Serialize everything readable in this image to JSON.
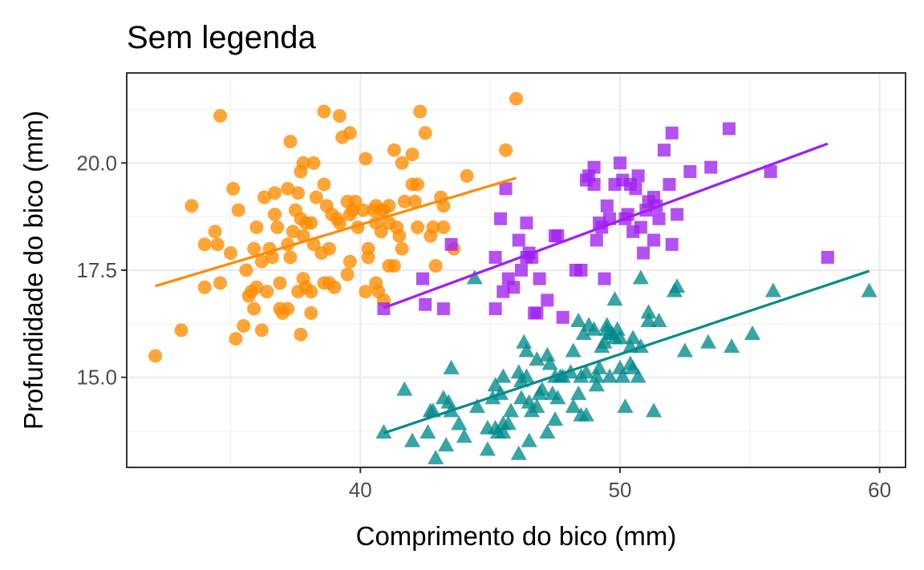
{
  "chart_data": {
    "type": "scatter",
    "title": "Sem legenda",
    "xlabel": "Comprimento do bico (mm)",
    "ylabel": "Profundidade do bico (mm)",
    "xlim": [
      31,
      61
    ],
    "ylim": [
      12.9,
      22.1
    ],
    "x_ticks": [
      40,
      50,
      60
    ],
    "y_ticks": [
      15.0,
      17.5,
      20.0
    ],
    "x_tick_labels": [
      "40",
      "50",
      "60"
    ],
    "y_tick_labels": [
      "15.0",
      "17.5",
      "20.0"
    ],
    "grid": true,
    "legend": "none",
    "series": [
      {
        "marker": "circle",
        "color": "#ff8c00",
        "fit_line": [
          [
            32.1,
            17.13
          ],
          [
            46.0,
            19.65
          ]
        ],
        "points": [
          [
            32.1,
            15.5
          ],
          [
            33.1,
            16.1
          ],
          [
            33.5,
            19.0
          ],
          [
            34.0,
            18.1
          ],
          [
            34.4,
            18.4
          ],
          [
            34.5,
            18.1
          ],
          [
            34.6,
            21.1
          ],
          [
            34.6,
            17.2
          ],
          [
            34.0,
            17.1
          ],
          [
            35.0,
            17.9
          ],
          [
            35.1,
            19.4
          ],
          [
            35.2,
            15.9
          ],
          [
            35.5,
            16.2
          ],
          [
            35.3,
            18.9
          ],
          [
            35.6,
            17.5
          ],
          [
            35.7,
            16.9
          ],
          [
            35.8,
            17.0
          ],
          [
            35.9,
            18.0
          ],
          [
            35.9,
            16.6
          ],
          [
            36.0,
            17.1
          ],
          [
            36.0,
            18.5
          ],
          [
            36.2,
            16.1
          ],
          [
            36.2,
            17.7
          ],
          [
            36.3,
            19.2
          ],
          [
            36.4,
            17.0
          ],
          [
            36.5,
            18.0
          ],
          [
            36.6,
            17.8
          ],
          [
            36.7,
            19.3
          ],
          [
            36.7,
            18.8
          ],
          [
            36.8,
            18.5
          ],
          [
            36.9,
            16.6
          ],
          [
            36.9,
            17.2
          ],
          [
            37.0,
            16.5
          ],
          [
            37.2,
            18.1
          ],
          [
            37.2,
            19.4
          ],
          [
            37.2,
            16.6
          ],
          [
            37.3,
            20.5
          ],
          [
            37.3,
            17.8
          ],
          [
            37.4,
            18.4
          ],
          [
            37.5,
            18.9
          ],
          [
            37.6,
            19.3
          ],
          [
            37.6,
            17.0
          ],
          [
            37.7,
            18.7
          ],
          [
            37.7,
            19.8
          ],
          [
            37.7,
            16.0
          ],
          [
            37.8,
            18.3
          ],
          [
            37.8,
            20.0
          ],
          [
            37.8,
            17.3
          ],
          [
            37.9,
            18.6
          ],
          [
            37.9,
            17.1
          ],
          [
            38.1,
            18.6
          ],
          [
            38.1,
            17.0
          ],
          [
            38.1,
            16.5
          ],
          [
            38.2,
            18.1
          ],
          [
            38.2,
            20.0
          ],
          [
            38.3,
            19.2
          ],
          [
            38.5,
            17.9
          ],
          [
            38.6,
            21.2
          ],
          [
            38.6,
            17.2
          ],
          [
            38.6,
            19.5
          ],
          [
            38.7,
            19.0
          ],
          [
            38.8,
            17.2
          ],
          [
            38.8,
            18.0
          ],
          [
            38.9,
            18.8
          ],
          [
            39.0,
            17.1
          ],
          [
            39.1,
            18.7
          ],
          [
            39.2,
            21.1
          ],
          [
            39.2,
            18.6
          ],
          [
            39.3,
            20.6
          ],
          [
            39.5,
            17.4
          ],
          [
            39.5,
            19.1
          ],
          [
            39.6,
            17.7
          ],
          [
            39.6,
            20.7
          ],
          [
            39.6,
            18.8
          ],
          [
            39.7,
            18.9
          ],
          [
            39.8,
            19.1
          ],
          [
            39.9,
            18.5
          ],
          [
            40.1,
            18.9
          ],
          [
            40.2,
            20.1
          ],
          [
            40.2,
            17.0
          ],
          [
            40.3,
            18.0
          ],
          [
            40.3,
            17.8
          ],
          [
            40.5,
            18.9
          ],
          [
            40.6,
            17.2
          ],
          [
            40.6,
            18.6
          ],
          [
            40.6,
            19.0
          ],
          [
            40.7,
            17.0
          ],
          [
            40.8,
            18.4
          ],
          [
            40.8,
            18.9
          ],
          [
            40.9,
            18.9
          ],
          [
            40.9,
            16.8
          ],
          [
            41.1,
            18.6
          ],
          [
            41.1,
            19.0
          ],
          [
            41.1,
            17.6
          ],
          [
            41.3,
            20.3
          ],
          [
            41.3,
            17.6
          ],
          [
            41.4,
            18.5
          ],
          [
            41.5,
            18.3
          ],
          [
            41.6,
            18.0
          ],
          [
            41.6,
            20.0
          ],
          [
            41.7,
            19.1
          ],
          [
            42.0,
            20.2
          ],
          [
            42.0,
            19.5
          ],
          [
            42.1,
            19.1
          ],
          [
            42.2,
            18.5
          ],
          [
            42.2,
            19.5
          ],
          [
            42.3,
            21.2
          ],
          [
            42.5,
            20.7
          ],
          [
            42.7,
            18.3
          ],
          [
            42.8,
            18.5
          ],
          [
            42.9,
            17.6
          ],
          [
            43.1,
            19.2
          ],
          [
            43.2,
            18.5
          ],
          [
            43.2,
            19.0
          ],
          [
            43.6,
            18.0
          ],
          [
            44.1,
            19.7
          ],
          [
            45.6,
            20.3
          ],
          [
            46.0,
            21.5
          ]
        ]
      },
      {
        "marker": "square",
        "color": "#a020f0",
        "fit_line": [
          [
            40.9,
            16.62
          ],
          [
            58.0,
            20.45
          ]
        ],
        "points": [
          [
            40.9,
            16.6
          ],
          [
            42.4,
            17.3
          ],
          [
            42.5,
            16.7
          ],
          [
            43.2,
            16.6
          ],
          [
            43.5,
            18.1
          ],
          [
            45.2,
            17.8
          ],
          [
            45.2,
            16.6
          ],
          [
            45.4,
            18.7
          ],
          [
            45.5,
            17.0
          ],
          [
            45.6,
            19.4
          ],
          [
            45.7,
            17.3
          ],
          [
            45.9,
            17.1
          ],
          [
            46.1,
            18.2
          ],
          [
            46.2,
            17.5
          ],
          [
            46.4,
            17.8
          ],
          [
            46.4,
            18.6
          ],
          [
            46.5,
            17.9
          ],
          [
            46.6,
            17.8
          ],
          [
            46.7,
            16.5
          ],
          [
            46.8,
            16.5
          ],
          [
            46.9,
            17.3
          ],
          [
            47.2,
            16.8
          ],
          [
            47.5,
            18.3
          ],
          [
            47.6,
            18.3
          ],
          [
            47.8,
            16.4
          ],
          [
            48.3,
            17.5
          ],
          [
            48.5,
            17.5
          ],
          [
            48.7,
            19.6
          ],
          [
            48.8,
            19.7
          ],
          [
            49.0,
            19.5
          ],
          [
            49.0,
            19.9
          ],
          [
            49.1,
            18.2
          ],
          [
            49.2,
            18.6
          ],
          [
            49.3,
            18.5
          ],
          [
            49.4,
            17.3
          ],
          [
            49.5,
            19.0
          ],
          [
            49.6,
            18.7
          ],
          [
            49.8,
            19.5
          ],
          [
            50.0,
            20.0
          ],
          [
            50.1,
            19.6
          ],
          [
            50.2,
            18.7
          ],
          [
            50.3,
            18.8
          ],
          [
            50.4,
            19.5
          ],
          [
            50.5,
            18.4
          ],
          [
            50.6,
            19.4
          ],
          [
            50.7,
            19.7
          ],
          [
            50.8,
            18.5
          ],
          [
            50.9,
            17.9
          ],
          [
            51.0,
            18.9
          ],
          [
            51.1,
            19.1
          ],
          [
            51.3,
            18.2
          ],
          [
            51.3,
            19.2
          ],
          [
            51.4,
            19.0
          ],
          [
            51.5,
            18.7
          ],
          [
            51.7,
            20.3
          ],
          [
            51.9,
            19.5
          ],
          [
            52.0,
            18.1
          ],
          [
            52.0,
            20.7
          ],
          [
            52.2,
            18.8
          ],
          [
            52.7,
            19.8
          ],
          [
            53.5,
            19.9
          ],
          [
            54.2,
            20.8
          ],
          [
            55.8,
            19.8
          ],
          [
            58.0,
            17.8
          ]
        ]
      },
      {
        "marker": "triangle",
        "color": "#008b8b",
        "fit_line": [
          [
            40.9,
            13.7
          ],
          [
            59.6,
            17.48
          ]
        ],
        "points": [
          [
            40.9,
            13.7
          ],
          [
            41.7,
            14.7
          ],
          [
            42.0,
            13.5
          ],
          [
            42.6,
            13.7
          ],
          [
            42.7,
            14.2
          ],
          [
            42.8,
            14.2
          ],
          [
            42.9,
            13.1
          ],
          [
            43.2,
            14.5
          ],
          [
            43.3,
            13.4
          ],
          [
            43.4,
            14.4
          ],
          [
            43.5,
            14.2
          ],
          [
            43.5,
            15.2
          ],
          [
            43.8,
            13.9
          ],
          [
            44.0,
            13.6
          ],
          [
            44.4,
            17.3
          ],
          [
            44.5,
            14.3
          ],
          [
            44.9,
            13.8
          ],
          [
            44.9,
            13.3
          ],
          [
            45.1,
            14.5
          ],
          [
            45.2,
            14.8
          ],
          [
            45.2,
            13.8
          ],
          [
            45.3,
            13.7
          ],
          [
            45.4,
            14.6
          ],
          [
            45.5,
            13.9
          ],
          [
            45.5,
            15.0
          ],
          [
            45.5,
            13.7
          ],
          [
            45.7,
            13.9
          ],
          [
            45.8,
            14.2
          ],
          [
            46.1,
            13.2
          ],
          [
            46.1,
            15.1
          ],
          [
            46.2,
            14.5
          ],
          [
            46.2,
            14.9
          ],
          [
            46.3,
            15.8
          ],
          [
            46.4,
            15.6
          ],
          [
            46.4,
            15.0
          ],
          [
            46.5,
            13.5
          ],
          [
            46.5,
            14.4
          ],
          [
            46.6,
            14.2
          ],
          [
            46.8,
            15.4
          ],
          [
            46.8,
            14.3
          ],
          [
            46.9,
            14.6
          ],
          [
            47.0,
            14.7
          ],
          [
            47.2,
            13.7
          ],
          [
            47.2,
            15.5
          ],
          [
            47.3,
            15.3
          ],
          [
            47.4,
            14.6
          ],
          [
            47.5,
            14.0
          ],
          [
            47.5,
            15.0
          ],
          [
            47.6,
            14.5
          ],
          [
            47.7,
            15.0
          ],
          [
            47.8,
            15.0
          ],
          [
            48.1,
            15.1
          ],
          [
            48.2,
            14.3
          ],
          [
            48.2,
            15.6
          ],
          [
            48.4,
            14.6
          ],
          [
            48.4,
            16.3
          ],
          [
            48.5,
            14.1
          ],
          [
            48.5,
            15.0
          ],
          [
            48.6,
            16.0
          ],
          [
            48.7,
            14.1
          ],
          [
            48.7,
            15.1
          ],
          [
            48.8,
            16.2
          ],
          [
            49.0,
            16.1
          ],
          [
            49.1,
            14.8
          ],
          [
            49.1,
            15.0
          ],
          [
            49.2,
            15.2
          ],
          [
            49.3,
            15.7
          ],
          [
            49.4,
            15.8
          ],
          [
            49.5,
            16.2
          ],
          [
            49.5,
            16.1
          ],
          [
            49.6,
            16.0
          ],
          [
            49.6,
            15.0
          ],
          [
            49.7,
            16.0
          ],
          [
            49.8,
            15.9
          ],
          [
            49.8,
            16.8
          ],
          [
            49.9,
            16.1
          ],
          [
            50.0,
            15.2
          ],
          [
            50.0,
            15.9
          ],
          [
            50.1,
            15.0
          ],
          [
            50.2,
            14.3
          ],
          [
            50.4,
            15.3
          ],
          [
            50.4,
            15.7
          ],
          [
            50.5,
            15.2
          ],
          [
            50.5,
            15.9
          ],
          [
            50.7,
            15.0
          ],
          [
            50.8,
            15.7
          ],
          [
            50.8,
            17.3
          ],
          [
            51.1,
            16.5
          ],
          [
            51.1,
            16.3
          ],
          [
            51.3,
            14.2
          ],
          [
            51.5,
            16.3
          ],
          [
            52.1,
            17.0
          ],
          [
            52.2,
            17.1
          ],
          [
            52.5,
            15.6
          ],
          [
            53.4,
            15.8
          ],
          [
            54.3,
            15.7
          ],
          [
            55.1,
            16.0
          ],
          [
            55.9,
            17.0
          ],
          [
            59.6,
            17.0
          ]
        ]
      }
    ]
  }
}
